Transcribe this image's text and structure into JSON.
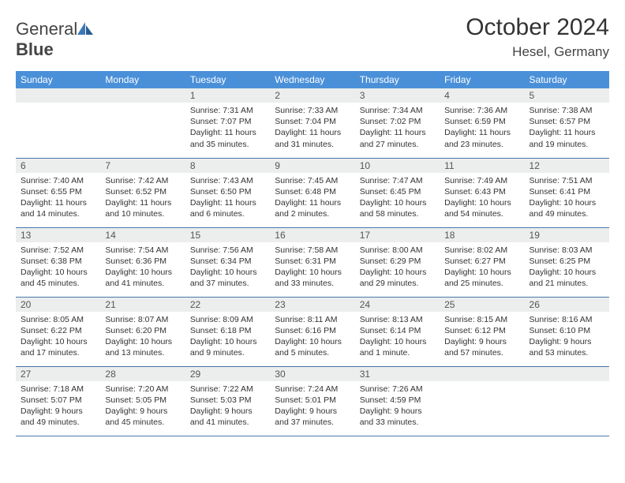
{
  "brand": {
    "part1": "General",
    "part2": "Blue"
  },
  "title": "October 2024",
  "location": "Hesel, Germany",
  "colors": {
    "header_bg": "#4a90d9",
    "header_text": "#ffffff",
    "daynum_bg": "#eceded",
    "border": "#4a78a8",
    "logo_accent": "#3b78b5"
  },
  "fonts": {
    "title_size": 30,
    "location_size": 17,
    "dayhead_size": 12,
    "cell_size": 10.5
  },
  "day_names": [
    "Sunday",
    "Monday",
    "Tuesday",
    "Wednesday",
    "Thursday",
    "Friday",
    "Saturday"
  ],
  "weeks": [
    [
      null,
      null,
      {
        "n": "1",
        "sr": "7:31 AM",
        "ss": "7:07 PM",
        "dl": "11 hours and 35 minutes."
      },
      {
        "n": "2",
        "sr": "7:33 AM",
        "ss": "7:04 PM",
        "dl": "11 hours and 31 minutes."
      },
      {
        "n": "3",
        "sr": "7:34 AM",
        "ss": "7:02 PM",
        "dl": "11 hours and 27 minutes."
      },
      {
        "n": "4",
        "sr": "7:36 AM",
        "ss": "6:59 PM",
        "dl": "11 hours and 23 minutes."
      },
      {
        "n": "5",
        "sr": "7:38 AM",
        "ss": "6:57 PM",
        "dl": "11 hours and 19 minutes."
      }
    ],
    [
      {
        "n": "6",
        "sr": "7:40 AM",
        "ss": "6:55 PM",
        "dl": "11 hours and 14 minutes."
      },
      {
        "n": "7",
        "sr": "7:42 AM",
        "ss": "6:52 PM",
        "dl": "11 hours and 10 minutes."
      },
      {
        "n": "8",
        "sr": "7:43 AM",
        "ss": "6:50 PM",
        "dl": "11 hours and 6 minutes."
      },
      {
        "n": "9",
        "sr": "7:45 AM",
        "ss": "6:48 PM",
        "dl": "11 hours and 2 minutes."
      },
      {
        "n": "10",
        "sr": "7:47 AM",
        "ss": "6:45 PM",
        "dl": "10 hours and 58 minutes."
      },
      {
        "n": "11",
        "sr": "7:49 AM",
        "ss": "6:43 PM",
        "dl": "10 hours and 54 minutes."
      },
      {
        "n": "12",
        "sr": "7:51 AM",
        "ss": "6:41 PM",
        "dl": "10 hours and 49 minutes."
      }
    ],
    [
      {
        "n": "13",
        "sr": "7:52 AM",
        "ss": "6:38 PM",
        "dl": "10 hours and 45 minutes."
      },
      {
        "n": "14",
        "sr": "7:54 AM",
        "ss": "6:36 PM",
        "dl": "10 hours and 41 minutes."
      },
      {
        "n": "15",
        "sr": "7:56 AM",
        "ss": "6:34 PM",
        "dl": "10 hours and 37 minutes."
      },
      {
        "n": "16",
        "sr": "7:58 AM",
        "ss": "6:31 PM",
        "dl": "10 hours and 33 minutes."
      },
      {
        "n": "17",
        "sr": "8:00 AM",
        "ss": "6:29 PM",
        "dl": "10 hours and 29 minutes."
      },
      {
        "n": "18",
        "sr": "8:02 AM",
        "ss": "6:27 PM",
        "dl": "10 hours and 25 minutes."
      },
      {
        "n": "19",
        "sr": "8:03 AM",
        "ss": "6:25 PM",
        "dl": "10 hours and 21 minutes."
      }
    ],
    [
      {
        "n": "20",
        "sr": "8:05 AM",
        "ss": "6:22 PM",
        "dl": "10 hours and 17 minutes."
      },
      {
        "n": "21",
        "sr": "8:07 AM",
        "ss": "6:20 PM",
        "dl": "10 hours and 13 minutes."
      },
      {
        "n": "22",
        "sr": "8:09 AM",
        "ss": "6:18 PM",
        "dl": "10 hours and 9 minutes."
      },
      {
        "n": "23",
        "sr": "8:11 AM",
        "ss": "6:16 PM",
        "dl": "10 hours and 5 minutes."
      },
      {
        "n": "24",
        "sr": "8:13 AM",
        "ss": "6:14 PM",
        "dl": "10 hours and 1 minute."
      },
      {
        "n": "25",
        "sr": "8:15 AM",
        "ss": "6:12 PM",
        "dl": "9 hours and 57 minutes."
      },
      {
        "n": "26",
        "sr": "8:16 AM",
        "ss": "6:10 PM",
        "dl": "9 hours and 53 minutes."
      }
    ],
    [
      {
        "n": "27",
        "sr": "7:18 AM",
        "ss": "5:07 PM",
        "dl": "9 hours and 49 minutes."
      },
      {
        "n": "28",
        "sr": "7:20 AM",
        "ss": "5:05 PM",
        "dl": "9 hours and 45 minutes."
      },
      {
        "n": "29",
        "sr": "7:22 AM",
        "ss": "5:03 PM",
        "dl": "9 hours and 41 minutes."
      },
      {
        "n": "30",
        "sr": "7:24 AM",
        "ss": "5:01 PM",
        "dl": "9 hours and 37 minutes."
      },
      {
        "n": "31",
        "sr": "7:26 AM",
        "ss": "4:59 PM",
        "dl": "9 hours and 33 minutes."
      },
      null,
      null
    ]
  ],
  "labels": {
    "sunrise": "Sunrise:",
    "sunset": "Sunset:",
    "daylight": "Daylight:"
  }
}
